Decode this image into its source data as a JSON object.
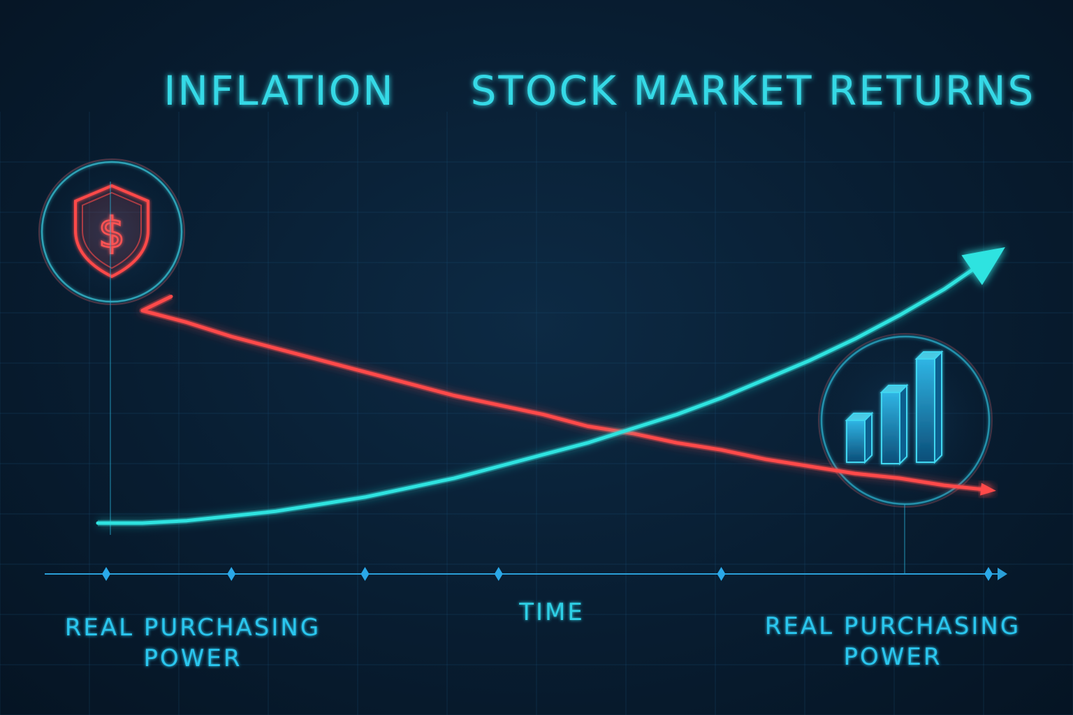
{
  "chart_data": {
    "type": "line",
    "titles": [
      "INFLATION",
      "STOCK MARKET RETURNS"
    ],
    "xlabel": "TIME",
    "corner_labels": {
      "left": [
        "REAL PURCHASING",
        "POWER"
      ],
      "right": [
        "REAL PURCHASING",
        "POWER"
      ]
    },
    "x": [
      0,
      1,
      2,
      3,
      4,
      5,
      6,
      7,
      8,
      9,
      10,
      11,
      12,
      13,
      14,
      15,
      16,
      17,
      18,
      19,
      20
    ],
    "series": [
      {
        "key": "inflation",
        "color": "#ff4a4a",
        "values": [
          96,
          90,
          85,
          79,
          74,
          69,
          64,
          59,
          54,
          50,
          46,
          41,
          38,
          34,
          31,
          27,
          24,
          21,
          19,
          16,
          14
        ],
        "icon": "dollar-shield-icon"
      },
      {
        "key": "stock",
        "color": "#2fe3e0",
        "values": [
          0,
          0,
          1,
          3,
          5,
          8,
          11,
          15,
          19,
          24,
          29,
          34,
          40,
          46,
          53,
          61,
          69,
          78,
          88,
          99,
          112
        ],
        "icon": "bar-chart-icon"
      }
    ],
    "ylim": [
      -5,
      150
    ],
    "xlim": [
      0,
      20
    ],
    "grid": true,
    "legend": "none",
    "time_markers": [
      0,
      3,
      6,
      9,
      14,
      20
    ]
  }
}
